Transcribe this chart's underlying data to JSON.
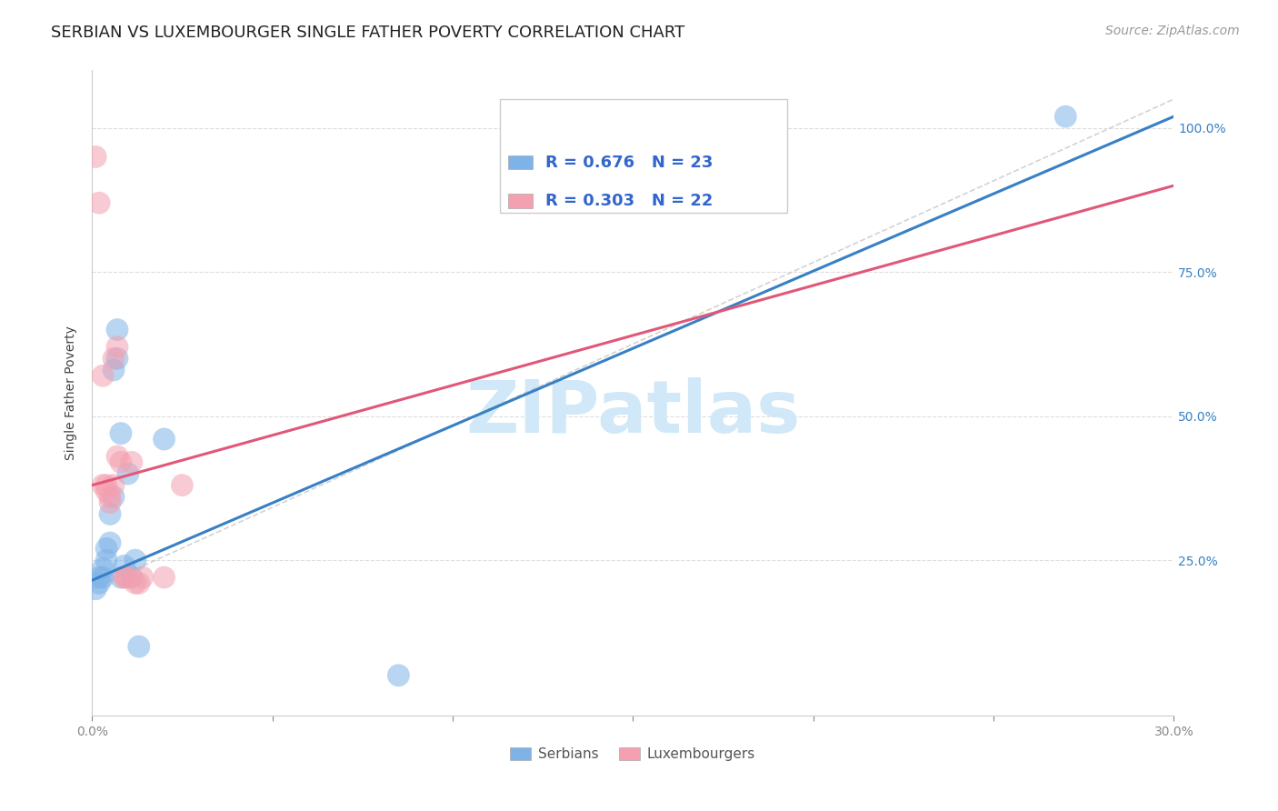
{
  "title": "SERBIAN VS LUXEMBOURGER SINGLE FATHER POVERTY CORRELATION CHART",
  "source": "Source: ZipAtlas.com",
  "ylabel": "Single Father Poverty",
  "xlim": [
    0.0,
    0.3
  ],
  "ylim": [
    -0.02,
    1.1
  ],
  "xticks": [
    0.0,
    0.05,
    0.1,
    0.15,
    0.2,
    0.25,
    0.3
  ],
  "xticklabels": [
    "0.0%",
    "",
    "",
    "",
    "",
    "",
    "30.0%"
  ],
  "yticks_right": [
    0.25,
    0.5,
    0.75,
    1.0
  ],
  "ytick_labels_right": [
    "25.0%",
    "50.0%",
    "75.0%",
    "100.0%"
  ],
  "serbian_color": "#7EB3E8",
  "luxembourger_color": "#F4A0B0",
  "serbian_line_color": "#3880C4",
  "luxembourger_line_color": "#E05878",
  "identity_line_color": "#C8C8C8",
  "R_serbian": 0.676,
  "N_serbian": 23,
  "R_luxembourger": 0.303,
  "N_luxembourger": 22,
  "serbian_x": [
    0.001,
    0.002,
    0.002,
    0.003,
    0.003,
    0.004,
    0.004,
    0.005,
    0.005,
    0.006,
    0.006,
    0.007,
    0.007,
    0.008,
    0.008,
    0.009,
    0.01,
    0.011,
    0.012,
    0.013,
    0.02,
    0.085,
    0.27
  ],
  "serbian_y": [
    0.2,
    0.21,
    0.22,
    0.22,
    0.235,
    0.25,
    0.27,
    0.28,
    0.33,
    0.36,
    0.58,
    0.6,
    0.65,
    0.47,
    0.22,
    0.24,
    0.4,
    0.22,
    0.25,
    0.1,
    0.46,
    0.05,
    1.02
  ],
  "luxembourger_x": [
    0.001,
    0.002,
    0.003,
    0.003,
    0.004,
    0.004,
    0.005,
    0.005,
    0.006,
    0.006,
    0.007,
    0.007,
    0.008,
    0.009,
    0.009,
    0.01,
    0.011,
    0.012,
    0.013,
    0.014,
    0.02,
    0.025
  ],
  "luxembourger_y": [
    0.95,
    0.87,
    0.57,
    0.38,
    0.38,
    0.37,
    0.35,
    0.36,
    0.38,
    0.6,
    0.62,
    0.43,
    0.42,
    0.22,
    0.22,
    0.22,
    0.42,
    0.21,
    0.21,
    0.22,
    0.22,
    0.38
  ],
  "serbian_line_x": [
    0.0,
    0.3
  ],
  "serbian_line_y": [
    0.215,
    1.02
  ],
  "luxembourger_line_x": [
    0.0,
    0.3
  ],
  "luxembourger_line_y": [
    0.38,
    0.9
  ],
  "diag_line_x": [
    0.0,
    0.3
  ],
  "diag_line_y": [
    0.2,
    1.05
  ],
  "background_color": "#FFFFFF",
  "grid_color": "#DDDDDD",
  "watermark_text": "ZIPatlas",
  "watermark_color": "#D0E8F8",
  "title_fontsize": 13,
  "axis_label_fontsize": 10,
  "tick_fontsize": 10,
  "legend_fontsize": 13,
  "source_fontsize": 10
}
